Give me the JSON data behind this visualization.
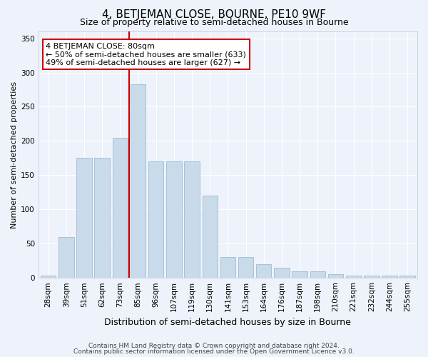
{
  "title": "4, BETJEMAN CLOSE, BOURNE, PE10 9WF",
  "subtitle": "Size of property relative to semi-detached houses in Bourne",
  "xlabel": "Distribution of semi-detached houses by size in Bourne",
  "ylabel": "Number of semi-detached properties",
  "footer1": "Contains HM Land Registry data © Crown copyright and database right 2024.",
  "footer2": "Contains public sector information licensed under the Open Government Licence v3.0.",
  "annotation_line1": "4 BETJEMAN CLOSE: 80sqm",
  "annotation_line2": "← 50% of semi-detached houses are smaller (633)",
  "annotation_line3": "49% of semi-detached houses are larger (627) →",
  "categories": [
    "28sqm",
    "39sqm",
    "51sqm",
    "62sqm",
    "73sqm",
    "85sqm",
    "96sqm",
    "107sqm",
    "119sqm",
    "130sqm",
    "141sqm",
    "153sqm",
    "164sqm",
    "176sqm",
    "187sqm",
    "198sqm",
    "210sqm",
    "221sqm",
    "232sqm",
    "244sqm",
    "255sqm"
  ],
  "values": [
    3,
    60,
    175,
    175,
    205,
    283,
    170,
    170,
    170,
    120,
    30,
    30,
    20,
    15,
    10,
    10,
    5,
    3,
    3,
    3,
    3
  ],
  "bar_color": "#c9daea",
  "bar_edge_color": "#a0bcce",
  "vline_index": 5,
  "vline_color": "#cc0000",
  "background_color": "#eef2fb",
  "grid_color": "#ffffff",
  "ylim": [
    0,
    360
  ],
  "yticks": [
    0,
    50,
    100,
    150,
    200,
    250,
    300,
    350
  ],
  "title_fontsize": 11,
  "subtitle_fontsize": 9,
  "ylabel_fontsize": 8,
  "xlabel_fontsize": 9,
  "tick_fontsize": 7.5,
  "footer_fontsize": 6.5,
  "annotation_fontsize": 8
}
